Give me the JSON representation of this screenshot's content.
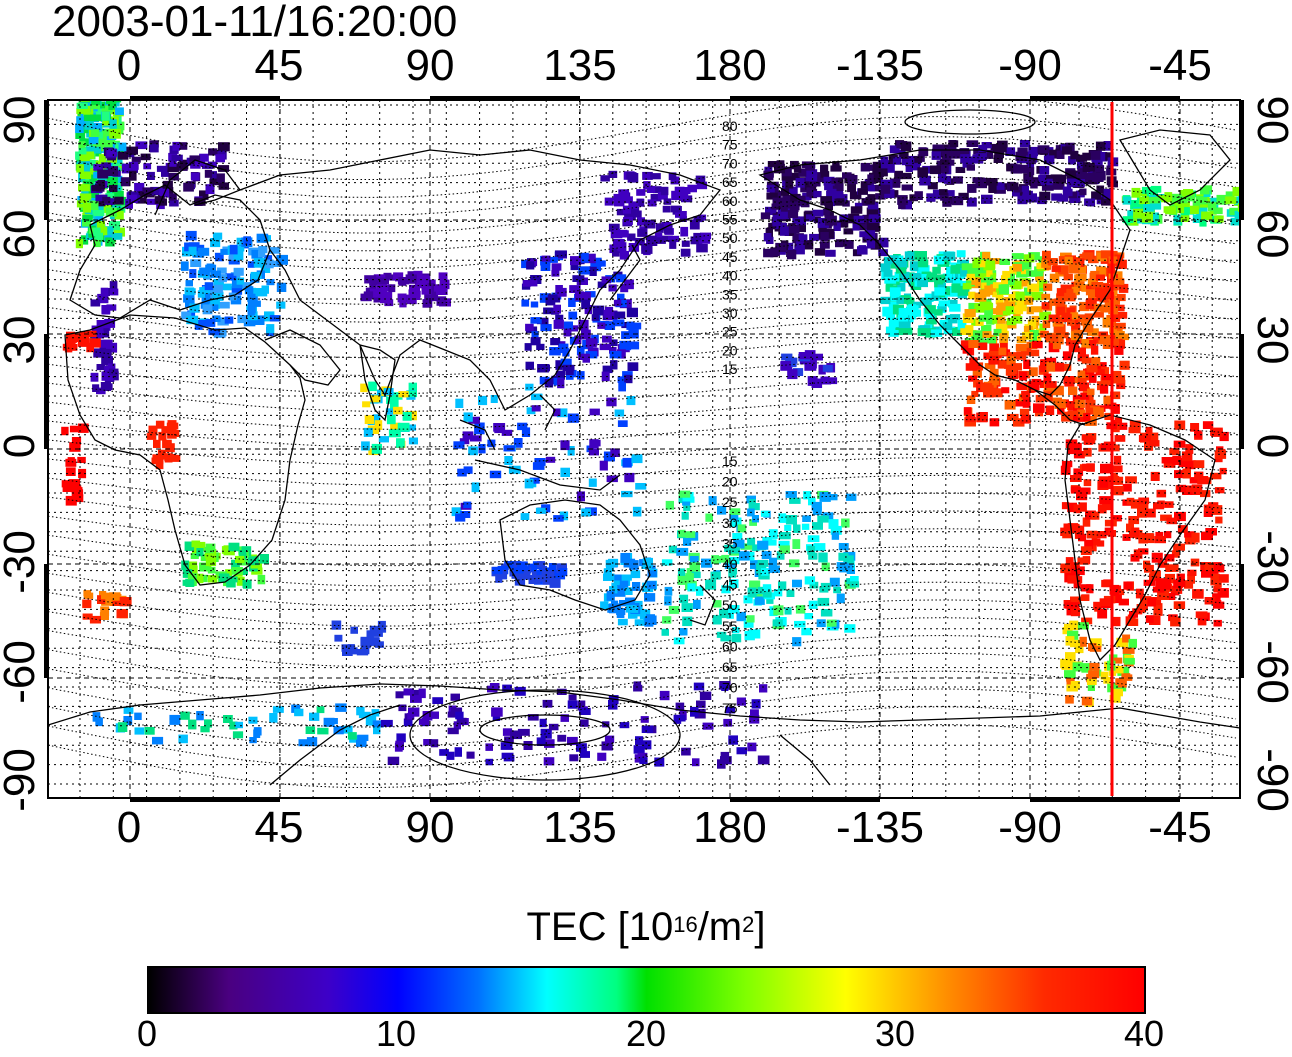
{
  "timestamp": "2003-01-11/16:20:00",
  "axes": {
    "top_ticks": [
      "0",
      "45",
      "90",
      "135",
      "180",
      "-135",
      "-90",
      "-45"
    ],
    "bottom_ticks": [
      "0",
      "45",
      "90",
      "135",
      "180",
      "-135",
      "-90",
      "-45"
    ],
    "left_ticks": [
      "90",
      "60",
      "30",
      "0",
      "-30",
      "-60",
      "-90"
    ],
    "right_ticks": [
      "90",
      "60",
      "30",
      "0",
      "-30",
      "-60",
      "-90"
    ]
  },
  "contour_labels": {
    "north": [
      "80",
      "75",
      "70",
      "65",
      "60",
      "55",
      "50",
      "45",
      "40",
      "35",
      "30",
      "25",
      "20",
      "15"
    ],
    "south": [
      "15",
      "20",
      "25",
      "30",
      "35",
      "40",
      "45",
      "50",
      "55",
      "60",
      "65",
      "70",
      "75"
    ]
  },
  "colorbar": {
    "title": "TEC  [10",
    "title_exp": "16",
    "title_unit": "/m",
    "title_unit_exp": "2",
    "title_close": "]",
    "ticks": [
      "0",
      "10",
      "20",
      "30",
      "40"
    ]
  },
  "colors": {
    "marker_line": "#ff0000",
    "frame": "#000000"
  }
}
